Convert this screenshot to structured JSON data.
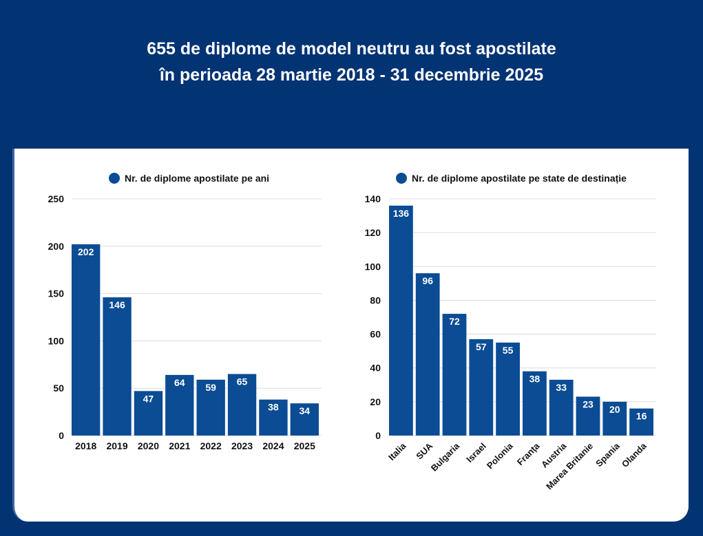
{
  "title_line1": "655 de diplome de model neutru au fost apostilate",
  "title_line2": "în perioada 28 martie 2018 - 31 decembrie 2025",
  "chart_data": [
    {
      "type": "bar",
      "legend": "Nr. de diplome apostilate pe ani",
      "legend_position": "top",
      "categories": [
        "2018",
        "2019",
        "2020",
        "2021",
        "2022",
        "2023",
        "2024",
        "2025"
      ],
      "values": [
        202,
        146,
        47,
        64,
        59,
        65,
        38,
        34
      ],
      "ylim": [
        0,
        250
      ],
      "yticks": [
        0,
        50,
        100,
        150,
        200,
        250
      ],
      "grid": true,
      "color": "#0b4c94"
    },
    {
      "type": "bar",
      "legend": "Nr. de diplome apostilate pe state de destinație",
      "legend_position": "top",
      "categories": [
        "Italia",
        "SUA",
        "Bulgaria",
        "Israel",
        "Polonia",
        "Franța",
        "Austria",
        "Marea Britanie",
        "Spania",
        "Olanda"
      ],
      "values": [
        136,
        96,
        72,
        57,
        55,
        38,
        33,
        23,
        20,
        16
      ],
      "ylim": [
        0,
        140
      ],
      "yticks": [
        0,
        20,
        40,
        60,
        80,
        100,
        120,
        140
      ],
      "grid": true,
      "color": "#0b4c94"
    }
  ]
}
